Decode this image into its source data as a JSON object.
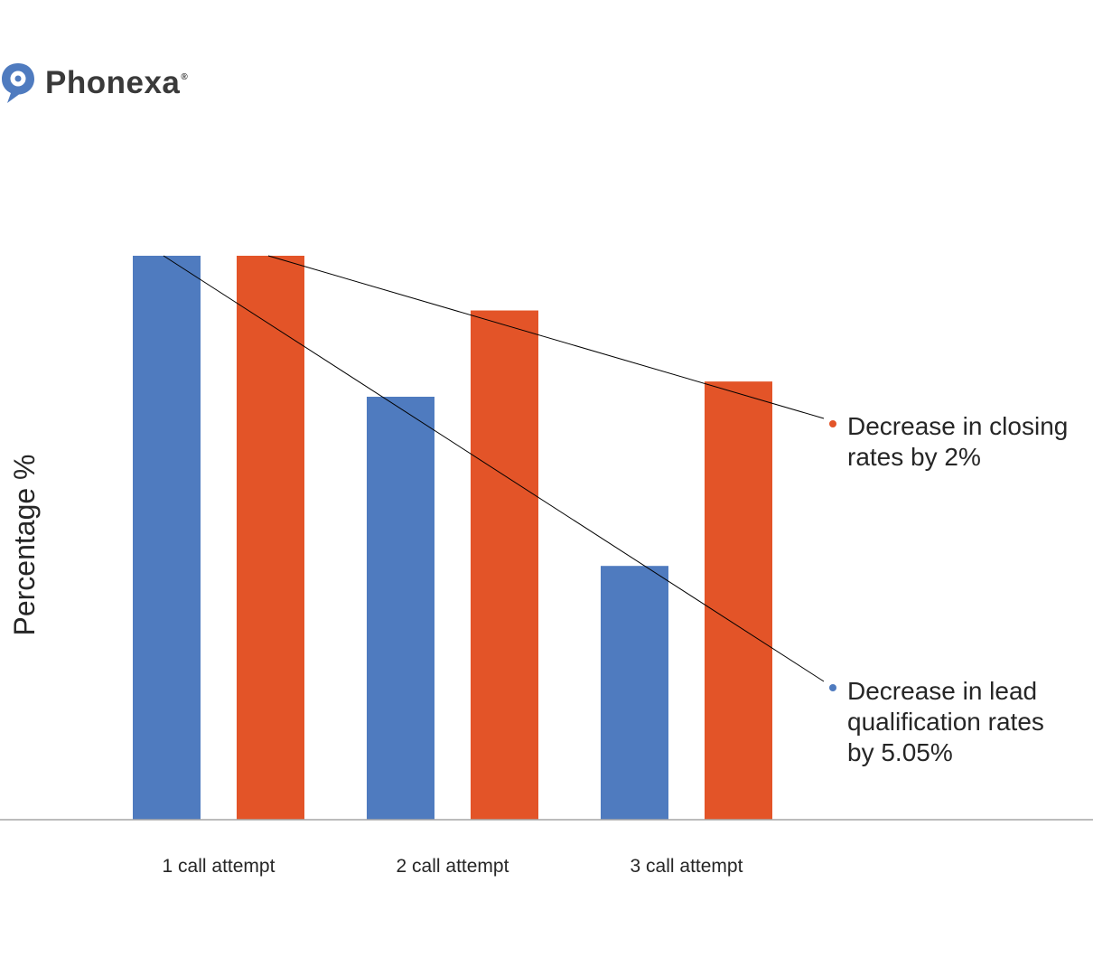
{
  "logo": {
    "name": "Phonexa",
    "registered": "®",
    "icon": "speech-bubble-pin-icon"
  },
  "colors": {
    "lead": "#4f7bbf",
    "closing": "#e35428",
    "axis": "#a6a6a6",
    "text": "#262626"
  },
  "chart_data": {
    "type": "bar",
    "categories": [
      "1 call attempt",
      "2 call attempt",
      "3 call attempt"
    ],
    "series": [
      {
        "key": "lead",
        "values": [
          100,
          75,
          45
        ]
      },
      {
        "key": "closing",
        "values": [
          100,
          90.3,
          77.7
        ]
      }
    ],
    "ylabel": "Percentage %",
    "ylim": [
      0,
      100
    ],
    "grid": false,
    "legend": "none",
    "annotations": [
      {
        "series": "closing",
        "line_from_category": 0,
        "text_lines": [
          "Decrease in closing",
          "rates by 2%"
        ]
      },
      {
        "series": "lead",
        "line_from_category": 0,
        "text_lines": [
          "Decrease in lead",
          "qualification rates",
          "by 5.05%"
        ]
      }
    ]
  }
}
